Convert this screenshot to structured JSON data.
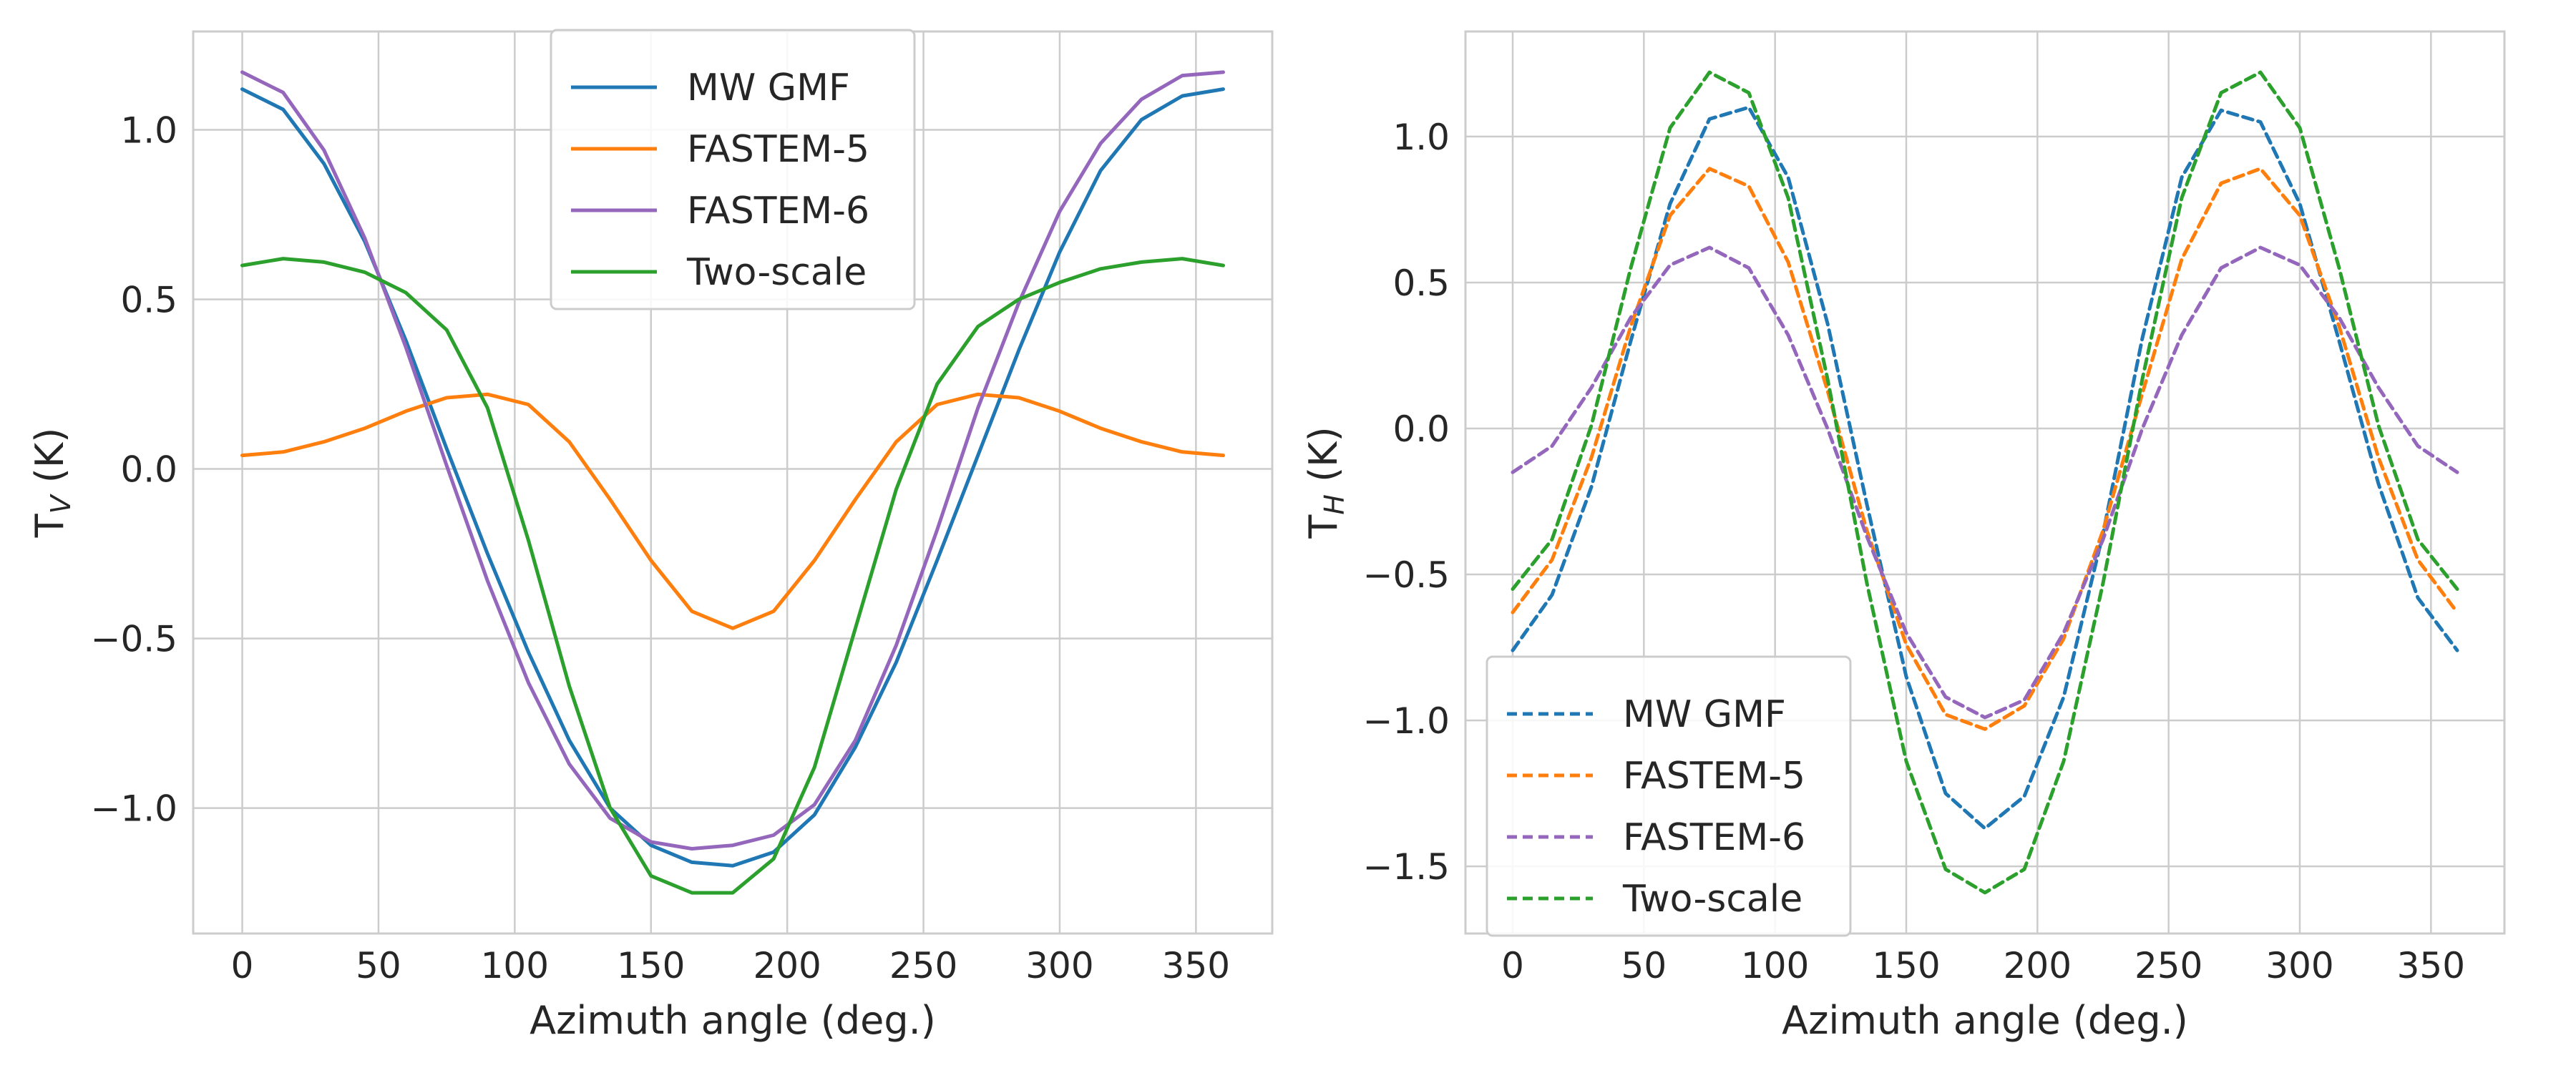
{
  "chart_data": [
    {
      "type": "line",
      "title": "",
      "xlabel": "Azimuth angle (deg.)",
      "ylabel": {
        "base": "T",
        "sub": "V",
        "unit": " (K)"
      },
      "xlim": [
        -18,
        378
      ],
      "ylim": [
        -1.37,
        1.29
      ],
      "xticks": [
        0,
        50,
        100,
        150,
        200,
        250,
        300,
        350
      ],
      "yticks": [
        -1.0,
        -0.5,
        0.0,
        0.5,
        1.0
      ],
      "ytick_labels": [
        "−1.0",
        "−0.5",
        "0.0",
        "0.5",
        "1.0"
      ],
      "grid": true,
      "line_style": "solid",
      "legend_position": "upper center",
      "x": [
        0,
        15,
        30,
        45,
        60,
        75,
        90,
        105,
        120,
        135,
        150,
        165,
        180,
        195,
        210,
        225,
        240,
        255,
        270,
        285,
        300,
        315,
        330,
        345,
        360
      ],
      "series": [
        {
          "name": "MW GMF",
          "color": "#1f77b4",
          "values": [
            1.12,
            1.06,
            0.9,
            0.67,
            0.38,
            0.06,
            -0.25,
            -0.54,
            -0.8,
            -1.0,
            -1.11,
            -1.16,
            -1.17,
            -1.13,
            -1.02,
            -0.82,
            -0.57,
            -0.27,
            0.04,
            0.35,
            0.64,
            0.88,
            1.03,
            1.1,
            1.12
          ]
        },
        {
          "name": "FASTEM-5",
          "color": "#ff7f0e",
          "values": [
            0.04,
            0.05,
            0.08,
            0.12,
            0.17,
            0.21,
            0.22,
            0.19,
            0.08,
            -0.09,
            -0.27,
            -0.42,
            -0.47,
            -0.42,
            -0.27,
            -0.09,
            0.08,
            0.19,
            0.22,
            0.21,
            0.17,
            0.12,
            0.08,
            0.05,
            0.04
          ]
        },
        {
          "name": "FASTEM-6",
          "color": "#9467bd",
          "values": [
            1.17,
            1.11,
            0.94,
            0.68,
            0.36,
            0.01,
            -0.33,
            -0.63,
            -0.87,
            -1.03,
            -1.1,
            -1.12,
            -1.11,
            -1.08,
            -0.99,
            -0.8,
            -0.52,
            -0.18,
            0.18,
            0.49,
            0.76,
            0.96,
            1.09,
            1.16,
            1.17
          ]
        },
        {
          "name": "Two-scale",
          "color": "#2ca02c",
          "values": [
            0.6,
            0.62,
            0.61,
            0.58,
            0.52,
            0.41,
            0.18,
            -0.21,
            -0.64,
            -1.0,
            -1.2,
            -1.25,
            -1.25,
            -1.15,
            -0.88,
            -0.47,
            -0.06,
            0.25,
            0.42,
            0.5,
            0.55,
            0.59,
            0.61,
            0.62,
            0.6
          ]
        }
      ]
    },
    {
      "type": "line",
      "title": "",
      "xlabel": "Azimuth angle (deg.)",
      "ylabel": {
        "base": "T",
        "sub": "H",
        "unit": " (K)"
      },
      "xlim": [
        -18,
        378
      ],
      "ylim": [
        -1.73,
        1.36
      ],
      "xticks": [
        0,
        50,
        100,
        150,
        200,
        250,
        300,
        350
      ],
      "yticks": [
        -1.5,
        -1.0,
        -0.5,
        0.0,
        0.5,
        1.0
      ],
      "ytick_labels": [
        "−1.5",
        "−1.0",
        "−0.5",
        "0.0",
        "0.5",
        "1.0"
      ],
      "grid": true,
      "line_style": "dashed",
      "legend_position": "lower left",
      "x": [
        0,
        15,
        30,
        45,
        60,
        75,
        90,
        105,
        120,
        135,
        150,
        165,
        180,
        195,
        210,
        225,
        240,
        255,
        270,
        285,
        300,
        315,
        330,
        345,
        360
      ],
      "series": [
        {
          "name": "MW GMF",
          "color": "#1f77b4",
          "values": [
            -0.76,
            -0.57,
            -0.2,
            0.3,
            0.77,
            1.06,
            1.1,
            0.86,
            0.36,
            -0.26,
            -0.85,
            -1.25,
            -1.37,
            -1.26,
            -0.92,
            -0.36,
            0.31,
            0.86,
            1.09,
            1.05,
            0.77,
            0.3,
            -0.19,
            -0.58,
            -0.76
          ]
        },
        {
          "name": "FASTEM-5",
          "color": "#ff7f0e",
          "values": [
            -0.63,
            -0.45,
            -0.1,
            0.35,
            0.73,
            0.89,
            0.83,
            0.57,
            0.13,
            -0.35,
            -0.74,
            -0.98,
            -1.03,
            -0.95,
            -0.72,
            -0.35,
            0.12,
            0.58,
            0.84,
            0.89,
            0.73,
            0.35,
            -0.1,
            -0.45,
            -0.63
          ]
        },
        {
          "name": "FASTEM-6",
          "color": "#9467bd",
          "values": [
            -0.15,
            -0.06,
            0.14,
            0.38,
            0.56,
            0.62,
            0.55,
            0.32,
            0.0,
            -0.37,
            -0.7,
            -0.92,
            -0.99,
            -0.93,
            -0.7,
            -0.38,
            0.0,
            0.32,
            0.55,
            0.62,
            0.56,
            0.38,
            0.14,
            -0.06,
            -0.15
          ]
        },
        {
          "name": "Two-scale",
          "color": "#2ca02c",
          "values": [
            -0.55,
            -0.38,
            0.01,
            0.55,
            1.03,
            1.22,
            1.15,
            0.79,
            0.17,
            -0.53,
            -1.14,
            -1.51,
            -1.59,
            -1.51,
            -1.14,
            -0.53,
            0.17,
            0.79,
            1.15,
            1.22,
            1.03,
            0.55,
            0.01,
            -0.38,
            -0.55
          ]
        }
      ]
    }
  ]
}
